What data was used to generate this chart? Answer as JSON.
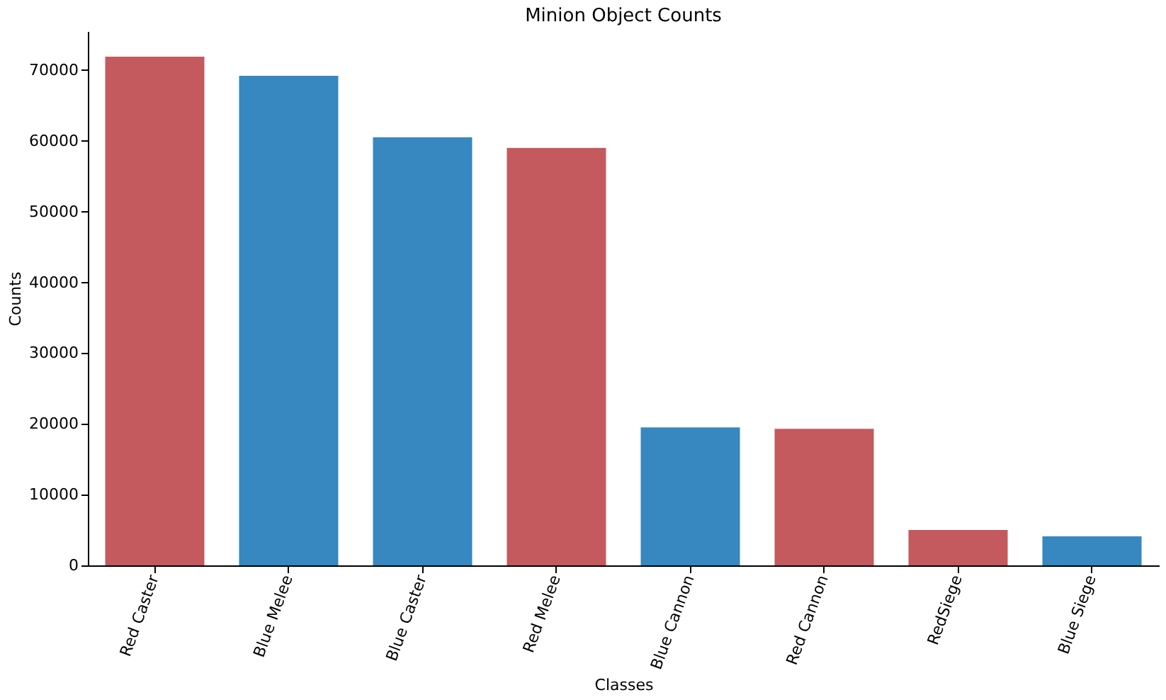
{
  "chart_data": {
    "type": "bar",
    "title": "Minion Object Counts",
    "xlabel": "Classes",
    "ylabel": "Counts",
    "categories": [
      "Red Caster",
      "Blue Melee",
      "Blue Caster",
      "Red Melee",
      "Blue Cannon",
      "Red Cannon",
      "RedSiege",
      "Blue Siege"
    ],
    "values": [
      71900,
      69200,
      60500,
      59000,
      19500,
      19300,
      5000,
      4100
    ],
    "colors": [
      "#c45a5e",
      "#3787c0",
      "#3787c0",
      "#c45a5e",
      "#3787c0",
      "#c45a5e",
      "#c45a5e",
      "#3787c0"
    ],
    "ylim": [
      0,
      75500
    ],
    "yticks": [
      0,
      10000,
      20000,
      30000,
      40000,
      50000,
      60000,
      70000
    ],
    "grid": false
  }
}
